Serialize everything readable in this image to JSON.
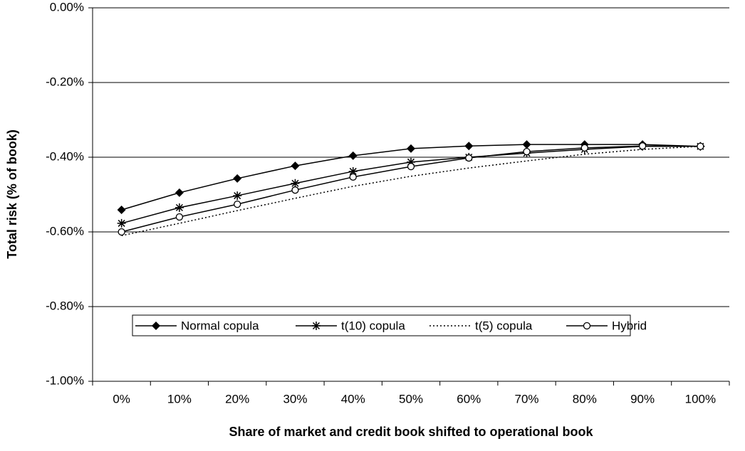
{
  "chart_data": {
    "type": "line",
    "x_label": "Share of market and credit book shifted to operational book",
    "y_label": "Total risk (% of book)",
    "categories": [
      "0%",
      "10%",
      "20%",
      "30%",
      "40%",
      "50%",
      "60%",
      "70%",
      "80%",
      "90%",
      "100%"
    ],
    "series": [
      {
        "name": "Normal copula",
        "color": "#000000",
        "marker": "diamond",
        "dash": "solid",
        "values": [
          -0.541,
          -0.495,
          -0.457,
          -0.423,
          -0.396,
          -0.377,
          -0.37,
          -0.366,
          -0.366,
          -0.366,
          -0.371
        ]
      },
      {
        "name": "t(10) copula",
        "color": "#000000",
        "marker": "star",
        "dash": "solid",
        "values": [
          -0.577,
          -0.535,
          -0.503,
          -0.47,
          -0.438,
          -0.413,
          -0.4,
          -0.389,
          -0.379,
          -0.371,
          -0.371
        ]
      },
      {
        "name": "t(5) copula",
        "color": "#000000",
        "marker": "none",
        "dash": "dotted",
        "values": [
          -0.61,
          -0.577,
          -0.543,
          -0.51,
          -0.478,
          -0.451,
          -0.429,
          -0.41,
          -0.392,
          -0.379,
          -0.371
        ]
      },
      {
        "name": "Hybrid",
        "color": "#000000",
        "marker": "circle",
        "dash": "solid",
        "values": [
          -0.6,
          -0.56,
          -0.526,
          -0.488,
          -0.453,
          -0.425,
          -0.402,
          -0.385,
          -0.375,
          -0.37,
          -0.371
        ]
      }
    ],
    "ylim": [
      -1.0,
      0.0
    ],
    "yticks": [
      {
        "value": -1.0,
        "label": "-1.00%"
      },
      {
        "value": -0.8,
        "label": "-0.80%"
      },
      {
        "value": -0.6,
        "label": "-0.60%"
      },
      {
        "value": -0.4,
        "label": "-0.40%"
      },
      {
        "value": -0.2,
        "label": "-0.20%"
      },
      {
        "value": 0.0,
        "label": "0.00%"
      }
    ],
    "grid": true,
    "legend": "inside"
  }
}
